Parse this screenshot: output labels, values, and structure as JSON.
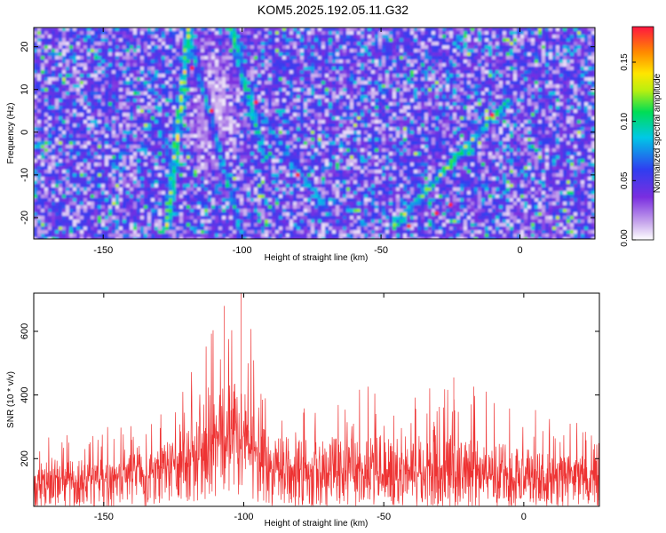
{
  "title": "KOM5.2025.192.05.11.G32",
  "chart_data": [
    {
      "type": "heatmap",
      "xlabel": "Height of straight line (km)",
      "ylabel": "Frequency (Hz)",
      "xlim": [
        -175,
        27
      ],
      "ylim": [
        -25,
        24.5
      ],
      "x_ticks": [
        -150,
        -100,
        -50,
        0
      ],
      "y_ticks": [
        -20,
        -10,
        0,
        10,
        20
      ],
      "grid": false,
      "colorbar": {
        "label": "Normalized spectral amplitude",
        "range": [
          0,
          0.18
        ],
        "ticks": [
          "0.00",
          "0.05",
          "0.10",
          "0.15"
        ],
        "colormap": "white-purple-blue-cyan-green-yellow-orange-red"
      },
      "features": [
        {
          "kind": "streak",
          "from": [
            -127,
            -22
          ],
          "to": [
            -119,
            24.5
          ],
          "peak": 0.13
        },
        {
          "kind": "streak",
          "from": [
            -100,
            -24
          ],
          "to": [
            -120,
            24.5
          ],
          "peak": 0.09
        },
        {
          "kind": "streak",
          "from": [
            -92,
            -6
          ],
          "to": [
            -104,
            24.5
          ],
          "peak": 0.1
        },
        {
          "kind": "streak",
          "from": [
            -70,
            -18
          ],
          "to": [
            -93,
            4
          ],
          "peak": 0.08
        },
        {
          "kind": "streak",
          "from": [
            -45,
            -22
          ],
          "to": [
            -5,
            7
          ],
          "peak": 0.12
        },
        {
          "kind": "low",
          "center": [
            -110,
            5
          ],
          "note": "white clearing"
        }
      ]
    },
    {
      "type": "line",
      "xlabel": "Height of straight line (km)",
      "ylabel": "SNR (10 * v/v)",
      "xlim": [
        -175,
        27
      ],
      "ylim": [
        50,
        720
      ],
      "x_ticks": [
        -150,
        -100,
        -50,
        0
      ],
      "y_ticks": [
        200,
        400,
        600
      ],
      "grid": false,
      "series": [
        {
          "color": "#ee3333",
          "envelope": {
            "x": [
              -175,
              -150,
              -130,
              -120,
              -110,
              -100,
              -95,
              -90,
              -80,
              -50,
              -25,
              0,
              27
            ],
            "mean": [
              115,
              118,
              135,
              175,
              225,
              230,
              180,
              145,
              135,
              130,
              128,
              122,
              115
            ],
            "peak": [
              280,
              300,
              340,
              500,
              680,
              720,
              520,
              430,
              420,
              450,
              460,
              370,
              300
            ]
          },
          "notable_peaks": [
            {
              "x": -101,
              "y": 720
            },
            {
              "x": -107,
              "y": 680
            },
            {
              "x": -25,
              "y": 455
            }
          ]
        }
      ]
    }
  ]
}
